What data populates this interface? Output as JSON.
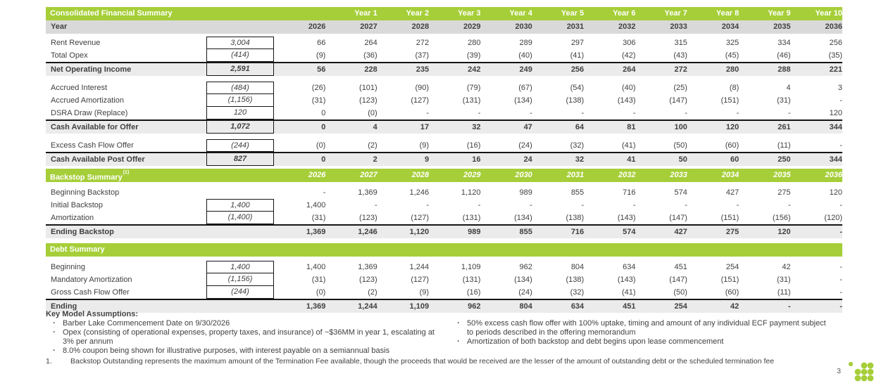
{
  "colors": {
    "accent_green": "#a6ce39",
    "year_row_gray": "#d9d9d9",
    "total_row_gray": "#ebebeb",
    "text": "#414042"
  },
  "table": {
    "sections": [
      {
        "header": {
          "title": "Consolidated Financial Summary",
          "sup": "",
          "italic_years": false,
          "years": [
            "",
            "Year 1",
            "Year 2",
            "Year 3",
            "Year 4",
            "Year 5",
            "Year 6",
            "Year 7",
            "Year 8",
            "Year 9",
            "Year 10"
          ]
        },
        "year_row": {
          "label": "Year",
          "years": [
            "2026",
            "2027",
            "2028",
            "2029",
            "2030",
            "2031",
            "2032",
            "2033",
            "2034",
            "2035",
            "2036"
          ]
        },
        "rows": [
          {
            "spacer": true,
            "h": 4
          },
          {
            "label": "Rent Revenue",
            "box": "3,004",
            "values": [
              "66",
              "264",
              "272",
              "280",
              "289",
              "297",
              "306",
              "315",
              "325",
              "334",
              "256"
            ]
          },
          {
            "label": "Total Opex",
            "box": "(414)",
            "box_cont": true,
            "values": [
              "(9)",
              "(36)",
              "(37)",
              "(39)",
              "(40)",
              "(41)",
              "(42)",
              "(43)",
              "(45)",
              "(46)",
              "(35)"
            ]
          },
          {
            "label": "Net Operating Income",
            "box": "2,591",
            "box_cont": true,
            "total": true,
            "values": [
              "56",
              "228",
              "235",
              "242",
              "249",
              "256",
              "264",
              "272",
              "280",
              "288",
              "221"
            ]
          },
          {
            "spacer": true,
            "h": 8
          },
          {
            "label": "Accrued Interest",
            "box": "(484)",
            "values": [
              "(26)",
              "(101)",
              "(90)",
              "(79)",
              "(67)",
              "(54)",
              "(40)",
              "(25)",
              "(8)",
              "4",
              "3"
            ]
          },
          {
            "label": "Accrued Amortization",
            "box": "(1,156)",
            "box_cont": true,
            "values": [
              "(31)",
              "(123)",
              "(127)",
              "(131)",
              "(134)",
              "(138)",
              "(143)",
              "(147)",
              "(151)",
              "(31)",
              "-"
            ]
          },
          {
            "label": "DSRA Draw (Replace)",
            "box": "120",
            "box_cont": true,
            "values": [
              "0",
              "(0)",
              "-",
              "-",
              "-",
              "-",
              "-",
              "-",
              "-",
              "-",
              "120"
            ]
          },
          {
            "label": "Cash Available for Offer",
            "box": "1,072",
            "box_cont": true,
            "total": true,
            "values": [
              "0",
              "4",
              "17",
              "32",
              "47",
              "64",
              "81",
              "100",
              "120",
              "261",
              "344"
            ]
          },
          {
            "spacer": true,
            "h": 8
          },
          {
            "label": "Excess Cash Flow Offer",
            "box": "(244)",
            "values": [
              "(0)",
              "(2)",
              "(9)",
              "(16)",
              "(24)",
              "(32)",
              "(41)",
              "(50)",
              "(60)",
              "(11)",
              "-"
            ]
          },
          {
            "label": "Cash Available Post Offer",
            "box": "827",
            "box_cont": true,
            "total": true,
            "values": [
              "0",
              "2",
              "9",
              "16",
              "24",
              "32",
              "41",
              "50",
              "60",
              "250",
              "344"
            ]
          }
        ]
      },
      {
        "gap_before": 4,
        "header": {
          "title": "Backstop Summary",
          "sup": "(1)",
          "italic_years": true,
          "years": [
            "2026",
            "2027",
            "2028",
            "2029",
            "2030",
            "2031",
            "2032",
            "2033",
            "2034",
            "2035",
            "2036"
          ]
        },
        "rows": [
          {
            "spacer": true,
            "h": 6
          },
          {
            "label": "Beginning Backstop",
            "values": [
              "-",
              "1,369",
              "1,246",
              "1,120",
              "989",
              "855",
              "716",
              "574",
              "427",
              "275",
              "120"
            ]
          },
          {
            "label": "Initial Backstop",
            "box": "1,400",
            "values": [
              "1,400",
              "-",
              "-",
              "-",
              "-",
              "-",
              "-",
              "-",
              "-",
              "-",
              "-"
            ]
          },
          {
            "label": "Amortization",
            "box": "(1,400)",
            "box_cont": true,
            "values": [
              "(31)",
              "(123)",
              "(127)",
              "(131)",
              "(134)",
              "(138)",
              "(143)",
              "(147)",
              "(151)",
              "(156)",
              "(120)"
            ]
          },
          {
            "label": "Ending Backstop",
            "total": true,
            "values": [
              "1,369",
              "1,246",
              "1,120",
              "989",
              "855",
              "716",
              "574",
              "427",
              "275",
              "120",
              "-"
            ]
          }
        ]
      },
      {
        "gap_before": 7,
        "header": {
          "title": "Debt Summary",
          "sup": "",
          "italic_years": false,
          "years": [
            "",
            "",
            "",
            "",
            "",
            "",
            "",
            "",
            "",
            "",
            ""
          ]
        },
        "rows": [
          {
            "spacer": true,
            "h": 6
          },
          {
            "label": "Beginning",
            "box": "1,400",
            "values": [
              "1,400",
              "1,369",
              "1,244",
              "1,109",
              "962",
              "804",
              "634",
              "451",
              "254",
              "42",
              "-"
            ]
          },
          {
            "label": "Mandatory Amortization",
            "box": "(1,156)",
            "box_cont": true,
            "values": [
              "(31)",
              "(123)",
              "(127)",
              "(131)",
              "(134)",
              "(138)",
              "(143)",
              "(147)",
              "(151)",
              "(31)",
              "-"
            ]
          },
          {
            "label": "Gross Cash Flow Offer",
            "box": "(244)",
            "box_cont": true,
            "values": [
              "(0)",
              "(2)",
              "(9)",
              "(16)",
              "(24)",
              "(32)",
              "(41)",
              "(50)",
              "(60)",
              "(11)",
              "-"
            ]
          },
          {
            "label": "Ending",
            "total": true,
            "values": [
              "1,369",
              "1,244",
              "1,109",
              "962",
              "804",
              "634",
              "451",
              "254",
              "42",
              "-",
              "-"
            ]
          }
        ]
      }
    ]
  },
  "assumptions": {
    "title": "Key Model Assumptions:",
    "bullet_char": "·",
    "left": [
      "Barber Lake Commencement Date on 9/30/2026",
      "Opex (consisting of operational expenses, property taxes, and insurance) of ~$36MM in year 1, escalating at 3% per annum",
      "8.0% coupon being shown for illustrative purposes, with interest payable on a semiannual basis"
    ],
    "right": [
      "50% excess cash flow offer with 100% uptake, timing and amount of any individual ECF payment subject to periods described in the offering memorandum",
      "Amortization of both backstop and debt begins upon lease commencement"
    ]
  },
  "footnote": {
    "number": "1.",
    "text": "Backstop Outstanding represents the maximum amount of the Termination Fee available, though the proceeds that would be received are the lesser of the amount of outstanding debt or the scheduled termination fee"
  },
  "page_number": "3"
}
